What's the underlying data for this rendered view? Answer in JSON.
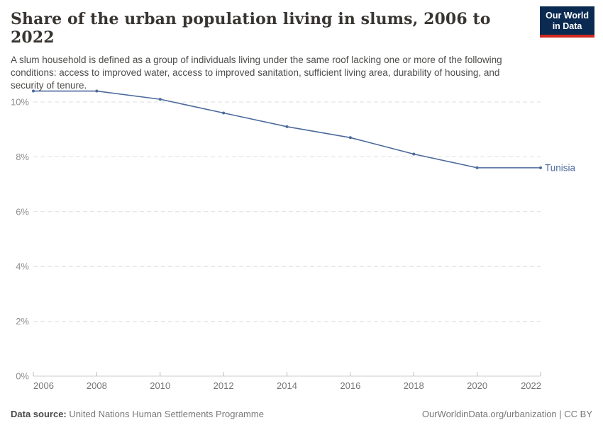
{
  "header": {
    "title": "Share of the urban population living in slums, 2006 to 2022",
    "subtitle": "A slum household is defined as a group of individuals living under the same roof lacking one or more of the following conditions: access to improved water, access to improved sanitation, sufficient living area, durability of housing, and security of tenure.",
    "logo": {
      "line1": "Our World",
      "line2": "in Data",
      "bg_color": "#0b2a52",
      "accent_color": "#d0281f"
    }
  },
  "chart_data": {
    "type": "line",
    "title": "Share of the urban population living in slums, 2006 to 2022",
    "x": [
      2006,
      2008,
      2010,
      2012,
      2014,
      2016,
      2018,
      2020,
      2022
    ],
    "series": [
      {
        "name": "Tunisia",
        "color": "#4C6A9C",
        "values": [
          10.4,
          10.4,
          10.1,
          9.6,
          9.1,
          8.7,
          8.1,
          7.6,
          7.6
        ]
      }
    ],
    "xlabel": "",
    "ylabel": "",
    "ylim": [
      0,
      10.8
    ],
    "y_ticks": [
      {
        "value": 0,
        "label": "0%"
      },
      {
        "value": 2,
        "label": "2%"
      },
      {
        "value": 4,
        "label": "4%"
      },
      {
        "value": 6,
        "label": "6%"
      },
      {
        "value": 8,
        "label": "8%"
      },
      {
        "value": 10,
        "label": "10%"
      }
    ],
    "x_tick_labels": [
      "2006",
      "2008",
      "2010",
      "2012",
      "2014",
      "2016",
      "2018",
      "2020",
      "2022"
    ],
    "grid": "dashed horizontal",
    "legend_position": "end-of-line label"
  },
  "footer": {
    "data_source_label": "Data source:",
    "data_source_value": "United Nations Human Settlements Programme",
    "attribution": "OurWorldinData.org/urbanization | CC BY"
  }
}
